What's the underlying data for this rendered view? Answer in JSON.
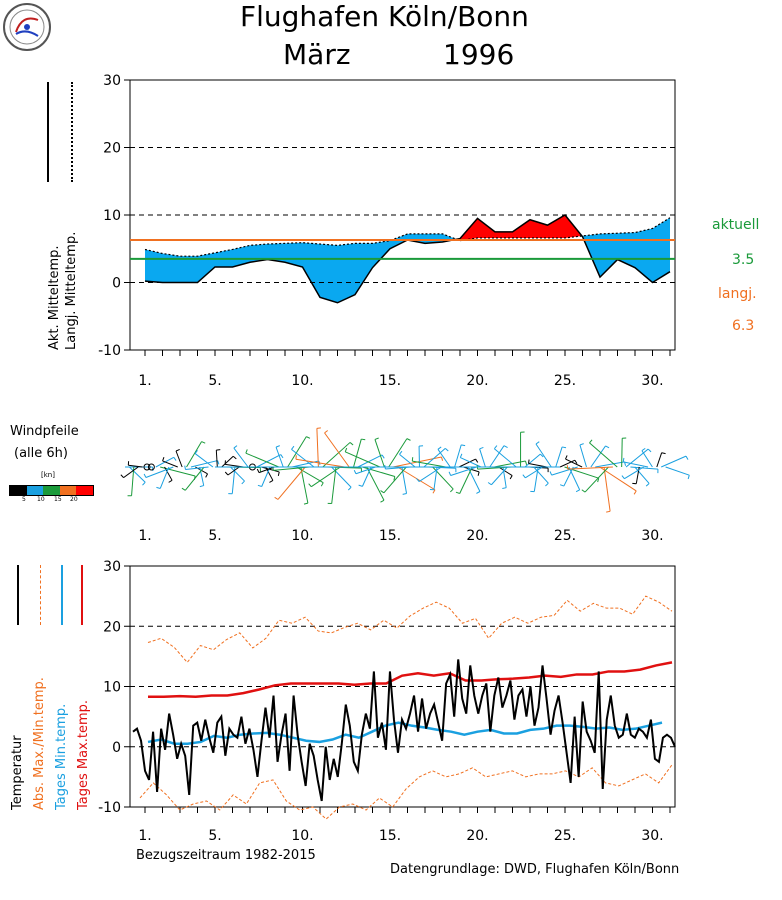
{
  "header": {
    "title_line1": "Flughafen Köln/Bonn",
    "title_month": "März",
    "title_year": "1996"
  },
  "colors": {
    "below_normal": "#0aa8f0",
    "above_normal": "#ff0000",
    "actual_line": "#1a9a3a",
    "longterm_line": "#f07020",
    "daily_min": "#1aa0e0",
    "daily_max": "#e01010",
    "abs_minmax": "#f07020"
  },
  "x_ticks": [
    "1.",
    "5.",
    "10.",
    "15.",
    "20.",
    "25.",
    "30."
  ],
  "chart_data": [
    {
      "type": "area",
      "ylabel_actual": "Akt. Mitteltemp.",
      "ylabel_longterm": "Langj. Mitteltemp.",
      "ylim": [
        -10,
        30
      ],
      "yticks": [
        -10,
        0,
        10,
        20,
        30
      ],
      "grid": true,
      "days": [
        1,
        2,
        3,
        4,
        5,
        6,
        7,
        8,
        9,
        10,
        11,
        12,
        13,
        14,
        15,
        16,
        17,
        18,
        19,
        20,
        21,
        22,
        23,
        24,
        25,
        26,
        27,
        28,
        29,
        30,
        31
      ],
      "actual_mean": [
        0.2,
        0.0,
        0.0,
        0.0,
        2.3,
        2.3,
        3.0,
        3.4,
        3.0,
        2.3,
        -2.2,
        -3.0,
        -1.8,
        2.2,
        5.0,
        6.3,
        5.8,
        6.0,
        6.5,
        9.5,
        7.5,
        7.5,
        9.3,
        8.5,
        10.0,
        6.8,
        0.8,
        3.4,
        2.2,
        0.0,
        1.6
      ],
      "longterm_mean": [
        4.9,
        4.3,
        3.9,
        3.9,
        4.4,
        4.9,
        5.5,
        5.7,
        5.8,
        5.9,
        5.7,
        5.5,
        5.8,
        5.8,
        6.2,
        7.2,
        7.2,
        7.2,
        6.2,
        6.6,
        6.6,
        6.6,
        6.6,
        6.6,
        6.6,
        6.9,
        7.2,
        7.3,
        7.4,
        8.0,
        9.6
      ],
      "legend": {
        "actual_label": "aktuell",
        "actual_value": "3.5",
        "longterm_label": "langj.",
        "longterm_value": "6.3"
      },
      "actual_month_mean": 3.5,
      "longterm_month_mean": 6.3
    },
    {
      "type": "scatter",
      "title": "Windpfeile",
      "subtitle": "(alle 6h)",
      "scale_unit": "[kn]",
      "scale_ticks": [
        "5",
        "10",
        "15",
        "20"
      ],
      "scale_colors": [
        "#000000",
        "#1aa0e0",
        "#1a9a3a",
        "#f07020",
        "#ff0000"
      ],
      "speeds_kn": [
        8,
        6,
        10,
        4,
        2,
        0,
        0,
        5,
        12,
        3,
        7,
        9,
        3,
        4,
        10,
        8,
        2,
        5,
        10,
        6,
        6,
        4,
        3,
        11,
        5,
        9,
        2,
        4,
        7,
        0,
        8,
        4,
        3,
        6,
        3,
        12,
        6,
        13,
        8,
        10,
        14,
        16,
        12,
        9,
        15,
        13,
        11,
        9,
        14,
        12,
        18,
        16,
        10,
        8,
        11,
        14,
        6,
        5,
        13,
        10,
        12,
        18,
        16,
        9,
        12,
        7,
        5,
        6,
        9,
        8,
        10,
        7,
        8,
        11,
        6,
        7,
        4,
        3,
        9,
        10,
        8,
        6,
        5,
        8,
        10,
        3,
        6,
        7,
        11,
        9,
        13,
        5,
        4,
        6,
        8,
        5,
        4,
        9,
        6,
        3,
        12,
        8,
        6,
        8,
        4,
        7,
        8,
        9,
        16,
        18,
        12,
        16,
        13,
        10,
        9,
        8,
        6,
        4,
        6,
        7,
        5,
        3,
        8,
        7
      ]
    },
    {
      "type": "line",
      "ylabel_temp": "Temperatur",
      "ylabel_abs": "Abs. Max./Min.temp.",
      "ylabel_min": "Tages Min.temp.",
      "ylabel_max": "Tages Max.temp.",
      "ylim": [
        -10,
        30
      ],
      "yticks": [
        -10,
        0,
        10,
        20,
        30
      ],
      "grid": true,
      "footnote_period": "Bezugszeitraum 1982-2015",
      "footnote_source": "Datengrundlage: DWD, Flughafen Köln/Bonn",
      "abs_max": [
        17.3,
        18.0,
        16.5,
        14.0,
        16.8,
        16.1,
        17.8,
        18.9,
        16.4,
        18.0,
        21.0,
        20.5,
        21.5,
        19.2,
        18.9,
        19.8,
        20.5,
        19.4,
        21.0,
        19.7,
        21.7,
        23.0,
        24.0,
        23.0,
        20.5,
        21.3,
        18.0,
        20.5,
        21.5,
        20.5,
        21.5,
        21.8,
        24.3,
        22.5,
        23.8,
        23.0,
        23.0,
        22.0,
        25.0,
        24.0,
        22.5
      ],
      "abs_min": [
        -8.5,
        -6.0,
        -8.0,
        -10.5,
        -9.5,
        -9.0,
        -10.5,
        -8.0,
        -9.5,
        -6.0,
        -5.5,
        -9.0,
        -10.5,
        -10.0,
        -12.0,
        -10.0,
        -9.5,
        -10.5,
        -8.5,
        -10.0,
        -7.0,
        -5.0,
        -4.0,
        -5.0,
        -4.5,
        -3.5,
        -5.0,
        -4.5,
        -4.0,
        -5.0,
        -4.5,
        -4.5,
        -4.0,
        -5.0,
        -3.5,
        -6.0,
        -6.5,
        -5.5,
        -4.5,
        -6.0,
        -3.0
      ],
      "daily_max": [
        8.3,
        8.3,
        8.4,
        8.3,
        8.5,
        8.5,
        8.9,
        9.5,
        10.2,
        10.5,
        10.5,
        10.5,
        10.5,
        10.3,
        10.5,
        10.5,
        11.8,
        12.2,
        11.8,
        12.2,
        11.0,
        11.0,
        11.2,
        11.3,
        11.5,
        11.8,
        11.6,
        12.0,
        12.0,
        12.5,
        12.5,
        12.8,
        13.5,
        14.0
      ],
      "daily_min": [
        0.8,
        1.2,
        0.5,
        0.5,
        0.8,
        1.8,
        1.5,
        2.0,
        2.2,
        2.3,
        2.0,
        1.5,
        1.0,
        0.8,
        1.2,
        2.0,
        1.5,
        2.5,
        3.5,
        4.0,
        3.5,
        3.2,
        2.8,
        2.5,
        2.0,
        2.5,
        2.8,
        2.2,
        2.2,
        2.8,
        3.0,
        3.5,
        3.5,
        3.3,
        3.0,
        3.2,
        2.8,
        3.0,
        3.5,
        4.0
      ],
      "hourly_temp": [
        2.5,
        3.0,
        1.0,
        -4.0,
        -5.5,
        2.5,
        -7.5,
        3.0,
        -0.5,
        5.5,
        2.0,
        -2.0,
        0.5,
        -1.5,
        -8.0,
        3.5,
        4.0,
        1.0,
        4.5,
        1.5,
        -1.0,
        4.0,
        5.0,
        -1.5,
        3.0,
        2.0,
        1.5,
        5.0,
        0.5,
        3.0,
        -0.5,
        -5.0,
        1.0,
        6.5,
        1.5,
        8.5,
        -2.5,
        2.0,
        5.5,
        -4.0,
        8.5,
        2.0,
        -2.5,
        -6.5,
        0.5,
        -1.5,
        -5.5,
        -9.0,
        0.0,
        -5.5,
        -2.0,
        -5.0,
        0.5,
        7.0,
        3.5,
        -2.5,
        -4.0,
        2.0,
        5.5,
        3.0,
        12.5,
        1.5,
        4.0,
        -0.5,
        12.5,
        4.5,
        -1.0,
        4.5,
        3.0,
        5.5,
        8.5,
        2.5,
        8.0,
        3.0,
        5.5,
        7.0,
        4.0,
        1.0,
        10.5,
        12.0,
        5.0,
        14.5,
        8.0,
        5.5,
        13.5,
        8.5,
        5.5,
        8.5,
        10.5,
        2.5,
        8.5,
        11.5,
        6.5,
        8.5,
        11.0,
        4.5,
        8.5,
        9.5,
        5.0,
        10.0,
        3.5,
        6.5,
        13.5,
        8.0,
        2.0,
        6.0,
        8.5,
        4.0,
        -1.0,
        -6.0,
        5.0,
        -5.0,
        7.5,
        2.5,
        1.0,
        -1.0,
        12.5,
        -7.0,
        4.5,
        8.5,
        3.5,
        1.5,
        2.0,
        5.5,
        2.0,
        1.5,
        3.0,
        2.5,
        1.5,
        4.5,
        -2.0,
        -2.5,
        1.5,
        2.0,
        1.5,
        0.0
      ]
    }
  ]
}
